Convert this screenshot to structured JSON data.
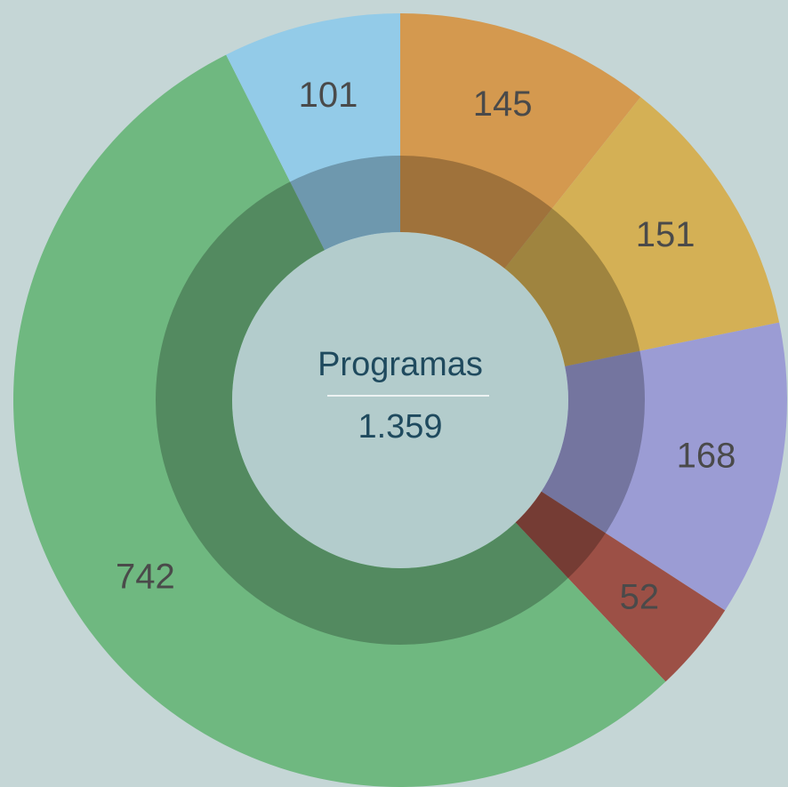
{
  "chart_data": {
    "type": "donut",
    "categories": [
      null,
      null,
      null,
      null,
      null,
      null
    ],
    "values": [
      145,
      151,
      168,
      52,
      742,
      101
    ],
    "colors": [
      "#d4994f",
      "#d4b055",
      "#9b9cd4",
      "#9c5046",
      "#6fb880",
      "#93cbe8"
    ],
    "center_title": "Programas",
    "total": {
      "value": 1359,
      "label": "1.359"
    }
  }
}
